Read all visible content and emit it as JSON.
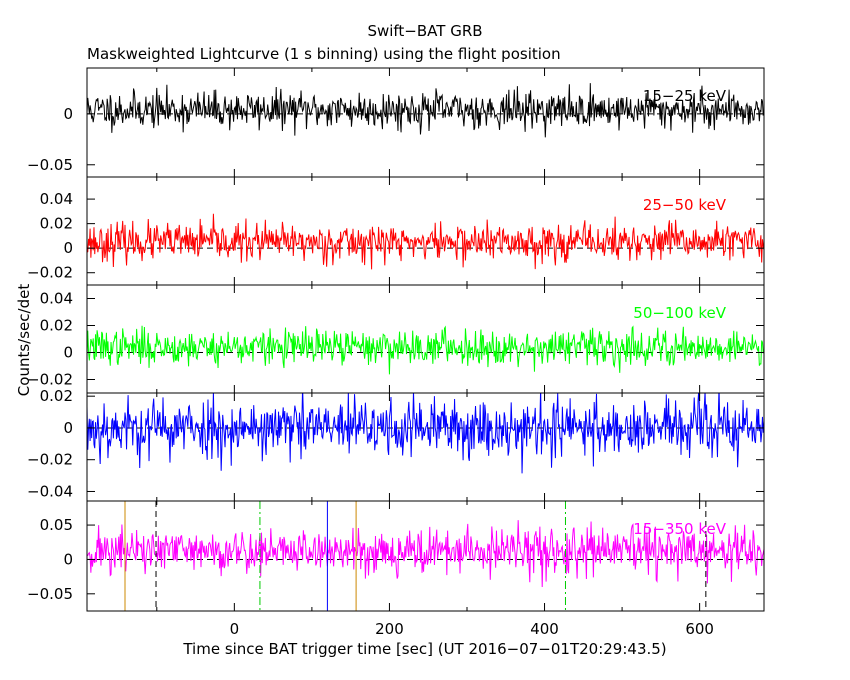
{
  "figure": {
    "title": "Swift−BAT GRB",
    "subtitle": "Maskweighted Lightcurve (1 s binning) using the flight position",
    "xlabel": "Time since BAT trigger time [sec] (UT 2016−07−01T20:29:43.5)",
    "ylabel": "Counts/sec/det"
  },
  "chart_data": {
    "type": "line",
    "shared_x": {
      "xlim": [
        -190,
        683
      ],
      "x_ticks": [
        0,
        200,
        400,
        600
      ],
      "x_tick_labels": [
        "0",
        "200",
        "400",
        "600"
      ],
      "bin_seconds": 1
    },
    "panels": [
      {
        "band_label": "15−25 keV",
        "color": "#000000",
        "ylim": [
          -0.062,
          0.045
        ],
        "y_ticks": [
          0,
          -0.05
        ],
        "y_tick_labels": [
          "0",
          "−0.05"
        ],
        "series": {
          "mean": 0.004,
          "noise_amp": 0.009,
          "seed": 11
        }
      },
      {
        "band_label": "25−50 keV",
        "color": "#ff0000",
        "ylim": [
          -0.03,
          0.058
        ],
        "y_ticks": [
          0.04,
          0.02,
          0,
          -0.02
        ],
        "y_tick_labels": [
          "0.04",
          "0.02",
          "0",
          "−0.02"
        ],
        "series": {
          "mean": 0.005,
          "noise_amp": 0.0075,
          "seed": 23
        }
      },
      {
        "band_label": "50−100 keV",
        "color": "#00ff00",
        "ylim": [
          -0.03,
          0.05
        ],
        "y_ticks": [
          0.04,
          0.02,
          0,
          -0.02
        ],
        "y_tick_labels": [
          "0.04",
          "0.02",
          "0",
          "−0.02"
        ],
        "series": {
          "mean": 0.004,
          "noise_amp": 0.0065,
          "seed": 37
        }
      },
      {
        "band_label": "",
        "color": "#0000ff",
        "ylim": [
          -0.046,
          0.022
        ],
        "y_ticks": [
          0.02,
          0,
          -0.02,
          -0.04
        ],
        "y_tick_labels": [
          "0.02",
          "0",
          "−0.02",
          "−0.04"
        ],
        "series": {
          "mean": 0.0,
          "noise_amp": 0.0095,
          "seed": 53
        }
      },
      {
        "band_label": "15−350 keV",
        "color": "#ff00ff",
        "ylim": [
          -0.075,
          0.085
        ],
        "y_ticks": [
          0.05,
          0,
          -0.05
        ],
        "y_tick_labels": [
          "0.05",
          "0",
          "−0.05"
        ],
        "series": {
          "mean": 0.012,
          "noise_amp": 0.0165,
          "seed": 71
        },
        "markers": [
          {
            "x": -141,
            "color": "#cc8800",
            "style": "solid"
          },
          {
            "x": -101,
            "color": "#000000",
            "style": "dashed"
          },
          {
            "x": 33,
            "color": "#00cc00",
            "style": "dashdot"
          },
          {
            "x": 120,
            "color": "#0000ff",
            "style": "solid"
          },
          {
            "x": 157,
            "color": "#cc8800",
            "style": "solid"
          },
          {
            "x": 427,
            "color": "#00cc00",
            "style": "dashdot"
          },
          {
            "x": 608,
            "color": "#000000",
            "style": "dashed"
          }
        ]
      }
    ]
  }
}
